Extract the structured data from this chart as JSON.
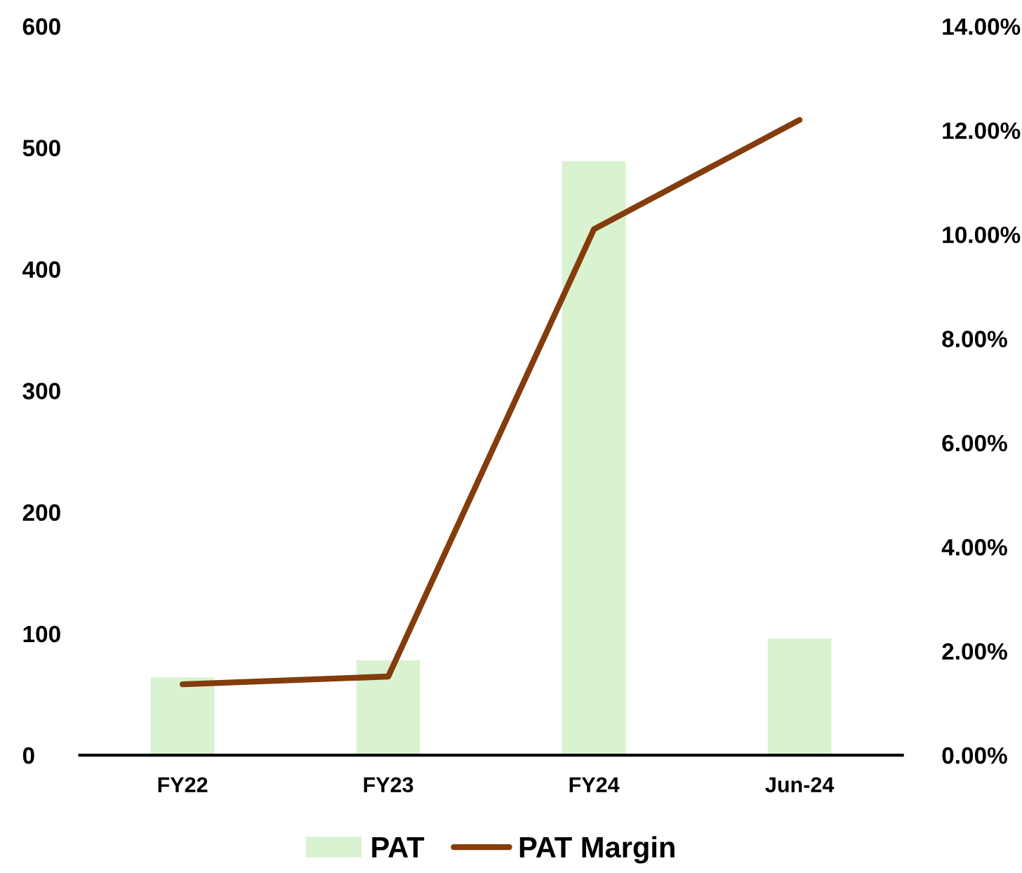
{
  "chart_data": {
    "type": "bar",
    "categories": [
      "FY22",
      "FY23",
      "FY24",
      "Jun-24"
    ],
    "series": [
      {
        "name": "PAT",
        "color": "#d9f2d0",
        "values": [
          64,
          78,
          489,
          96
        ]
      },
      {
        "name": "PAT Margin",
        "type": "line",
        "axis": "y2",
        "color": "#843c0c",
        "values": [
          1.36,
          1.51,
          10.1,
          12.2
        ]
      }
    ],
    "ylim": [
      0,
      600
    ],
    "yticks": [
      0,
      100,
      200,
      300,
      400,
      500,
      600
    ],
    "y2lim": [
      0,
      14
    ],
    "y2ticks": [
      {
        "value": 0,
        "label": "0.00%"
      },
      {
        "value": 2,
        "label": "2.00%"
      },
      {
        "value": 4,
        "label": "4.00%"
      },
      {
        "value": 6,
        "label": "6.00%"
      },
      {
        "value": 8,
        "label": "8.00%"
      },
      {
        "value": 10,
        "label": "10.00%"
      },
      {
        "value": 12,
        "label": "12.00%"
      },
      {
        "value": 14,
        "label": "14.00%"
      }
    ],
    "grid": false,
    "legend": "bottom",
    "marker": "none",
    "line_style": "solid"
  }
}
